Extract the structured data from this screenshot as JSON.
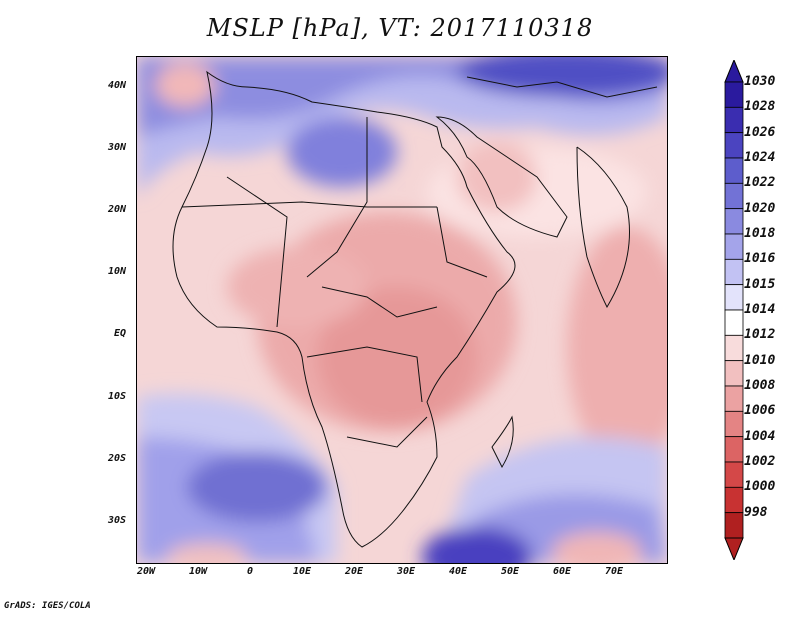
{
  "title": "MSLP [hPa], VT: 2017110318",
  "footer": "GrADS: IGES/COLA",
  "map": {
    "projection": "lat-lon",
    "region": "Africa, Middle East, Indian Ocean",
    "lon_range": [
      -22,
      80
    ],
    "lat_range": [
      -37,
      45
    ],
    "lat_ticks": [
      "40N",
      "30N",
      "20N",
      "10N",
      "EQ",
      "10S",
      "20S",
      "30S"
    ],
    "lon_ticks": [
      "20W",
      "10W",
      "0",
      "10E",
      "20E",
      "30E",
      "40E",
      "50E",
      "60E",
      "70E"
    ]
  },
  "colorbar": {
    "levels": [
      "1030",
      "1028",
      "1026",
      "1024",
      "1022",
      "1020",
      "1018",
      "1016",
      "1015",
      "1014",
      "1012",
      "1010",
      "1008",
      "1006",
      "1004",
      "1002",
      "1000",
      "998"
    ],
    "colors": [
      "#2a1a9e",
      "#3a2db0",
      "#4b44c0",
      "#5d5dcc",
      "#7272d6",
      "#8a8ae0",
      "#a4a4ea",
      "#c2c2f3",
      "#e3e3fb",
      "#ffffff",
      "#f8dcdc",
      "#f2c0c0",
      "#eba2a2",
      "#e48484",
      "#dc6464",
      "#d44848",
      "#c83232",
      "#b02020"
    ]
  }
}
